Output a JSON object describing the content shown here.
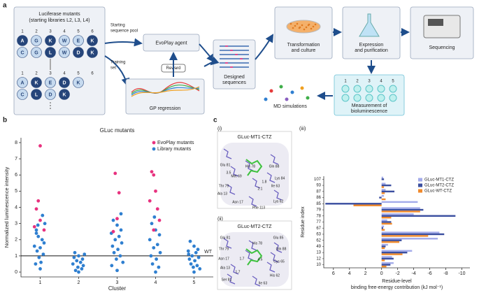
{
  "panel_labels": [
    "a",
    "b",
    "c"
  ],
  "sub_labels": [
    "(i)",
    "(ii)",
    "(iii)"
  ],
  "workflow": {
    "library": {
      "title": "Luciferase mutants",
      "subtitle": "(starting libraries L2, L3, L4)",
      "positions": [
        "1",
        "2",
        "3",
        "4",
        "5",
        "6"
      ],
      "rows": [
        [
          "A",
          "G",
          "K",
          "W",
          "E",
          "K"
        ],
        [
          "C",
          "G",
          "L",
          "W",
          "D",
          "K"
        ]
      ],
      "lower_rows": [
        [
          "A",
          "K",
          "E",
          "D",
          "K"
        ],
        [
          "C",
          "L",
          "D",
          "K"
        ]
      ]
    },
    "edges": {
      "pool": [
        "Starting",
        "sequence pool"
      ],
      "training": [
        "Training",
        "set"
      ],
      "reward": "Reward"
    },
    "agent": "EvoPlay agent",
    "gp": "GP regression",
    "designed": [
      "Designed",
      "sequences"
    ],
    "transformation": [
      "Transformation",
      "and culture"
    ],
    "expression": [
      "Expression",
      "and purification"
    ],
    "sequencing": "Sequencing",
    "measurement": [
      "Measurement of",
      "bioluminescence"
    ],
    "wells": [
      "1",
      "2",
      "3",
      "4",
      "5"
    ],
    "md": "MD simulations"
  },
  "chart_data": [
    {
      "type": "scatter",
      "title": "GLuc mutants",
      "xlabel": "Cluster",
      "ylabel": "Normalized luminescence intensity",
      "xlim": [
        0.5,
        5.5
      ],
      "xticks": [
        1,
        2,
        3,
        4,
        5
      ],
      "ylim": [
        -0.3,
        8.3
      ],
      "yticks": [
        0,
        1,
        2,
        3,
        4,
        5,
        6,
        7,
        8
      ],
      "reference_line": {
        "value": 1,
        "label": "WT"
      },
      "legend": "upper right",
      "series": [
        {
          "name": "EvoPlay mutants",
          "color": "#e8327f",
          "x": [
            1.0,
            0.95,
            0.9,
            1.0,
            0.85,
            1.1,
            2.95,
            3.05,
            3.0,
            2.9,
            3.9,
            3.95,
            4.0,
            3.85,
            4.05,
            4.1,
            3.95
          ],
          "y": [
            7.8,
            4.4,
            3.9,
            3.2,
            2.8,
            2.6,
            6.1,
            4.9,
            3.3,
            2.5,
            6.2,
            6.0,
            5.0,
            4.4,
            3.9,
            3.2,
            2.6
          ]
        },
        {
          "name": "Library mutants",
          "color": "#2f7fd0",
          "x": [
            0.9,
            0.95,
            1.05,
            1.1,
            0.85,
            1.0,
            0.92,
            1.08,
            0.97,
            1.02,
            0.88,
            1.12,
            0.94,
            1.06,
            1.0,
            0.9,
            1.9,
            2.0,
            2.1,
            1.95,
            2.05,
            1.85,
            2.12,
            1.98,
            2.08,
            1.92,
            2.0,
            2.15,
            1.88,
            2.9,
            3.0,
            3.1,
            2.85,
            3.05,
            2.95,
            3.12,
            2.88,
            3.02,
            2.92,
            3.08,
            2.98,
            3.15,
            2.86,
            3.0,
            3.1,
            3.9,
            4.0,
            4.1,
            3.85,
            4.05,
            3.95,
            4.12,
            3.88,
            4.02,
            3.92,
            4.08,
            4.0,
            3.97,
            4.9,
            5.0,
            5.1,
            4.85,
            5.05,
            4.95,
            5.12,
            4.88,
            5.02,
            4.92,
            5.08,
            4.98,
            5.15,
            5.0,
            4.86
          ],
          "y": [
            2.4,
            2.2,
            2.0,
            1.8,
            1.6,
            1.5,
            1.3,
            1.1,
            0.9,
            0.6,
            0.5,
            3.0,
            2.9,
            3.5,
            0.2,
            2.6,
            1.2,
            1.0,
            0.8,
            0.7,
            0.6,
            0.5,
            0.4,
            0.3,
            0.2,
            0.1,
            0.0,
            1.1,
            0.9,
            3.2,
            2.9,
            2.6,
            2.4,
            2.2,
            2.0,
            1.8,
            1.6,
            1.4,
            1.2,
            1.0,
            0.8,
            0.6,
            0.4,
            0.1,
            3.6,
            3.0,
            2.6,
            2.3,
            2.0,
            1.7,
            1.5,
            1.2,
            1.0,
            0.8,
            0.5,
            0.3,
            0.0,
            3.4,
            1.9,
            1.6,
            1.4,
            1.3,
            1.2,
            1.0,
            0.9,
            0.8,
            0.7,
            0.5,
            0.4,
            0.3,
            0.2,
            0.0,
            1.1
          ]
        }
      ]
    },
    {
      "type": "barh",
      "xlabel": [
        "Residue-level",
        "binding free-energy contribution (kJ mol⁻¹)"
      ],
      "ylabel": "Residue index",
      "categories": [
        "107",
        "93",
        "87",
        "86",
        "85",
        "79",
        "78",
        "77",
        "67",
        "63",
        "62",
        "49",
        "13",
        "12",
        "10"
      ],
      "xlim": [
        7.2,
        -11
      ],
      "xticks": [
        6,
        4,
        2,
        0,
        -2,
        -4,
        -6,
        -8,
        -10
      ],
      "legend": "upper right",
      "series": [
        {
          "name": "GLuc-MT1-CTZ",
          "color": "#a3abea",
          "values": [
            -0.2,
            -0.5,
            -0.5,
            -0.3,
            -4.5,
            -4.8,
            -4.0,
            -0.7,
            -0.3,
            -7.2,
            -7.0,
            -0.8,
            -3.8,
            -1.3,
            -1.5
          ]
        },
        {
          "name": "GLuc-MT2-CTZ",
          "color": "#3b4fa0",
          "values": [
            -0.3,
            -1.2,
            -1.6,
            0.3,
            7.0,
            -5.2,
            -9.2,
            -1.2,
            -0.2,
            -7.8,
            -2.5,
            -0.5,
            -3.2,
            -1.5,
            -1.1
          ]
        },
        {
          "name": "GLuc-WT-CTZ",
          "color": "#f08a2c",
          "values": [
            0,
            -0.3,
            -0.4,
            -0.5,
            3.5,
            -4.8,
            -1.2,
            -1.3,
            -0.4,
            -5.8,
            -2.2,
            -0.4,
            -2.6,
            -0.4,
            -0.6
          ]
        }
      ]
    }
  ],
  "structures": [
    {
      "title": "GLuc-MT1-CTZ",
      "labels": [
        "Glu 81",
        "His 78",
        "Gln 88",
        "Met 69",
        "3.5",
        "Lys 84",
        "Thr 79",
        "2.1",
        "1.8",
        "Ile 63",
        "Ala 13",
        "Asn 17",
        "Lys 62",
        "Phe 113"
      ]
    },
    {
      "title": "GLuc-MT2-CTZ",
      "labels": [
        "Glu 81",
        "Glu 85",
        "His 78",
        "Thr 79",
        "Gln 88",
        "Asn 17",
        "1.7",
        "4.5",
        "Cys 65",
        "Ala 13",
        "1.7",
        "His 62",
        "Ser 81",
        "Ile 63"
      ]
    }
  ]
}
